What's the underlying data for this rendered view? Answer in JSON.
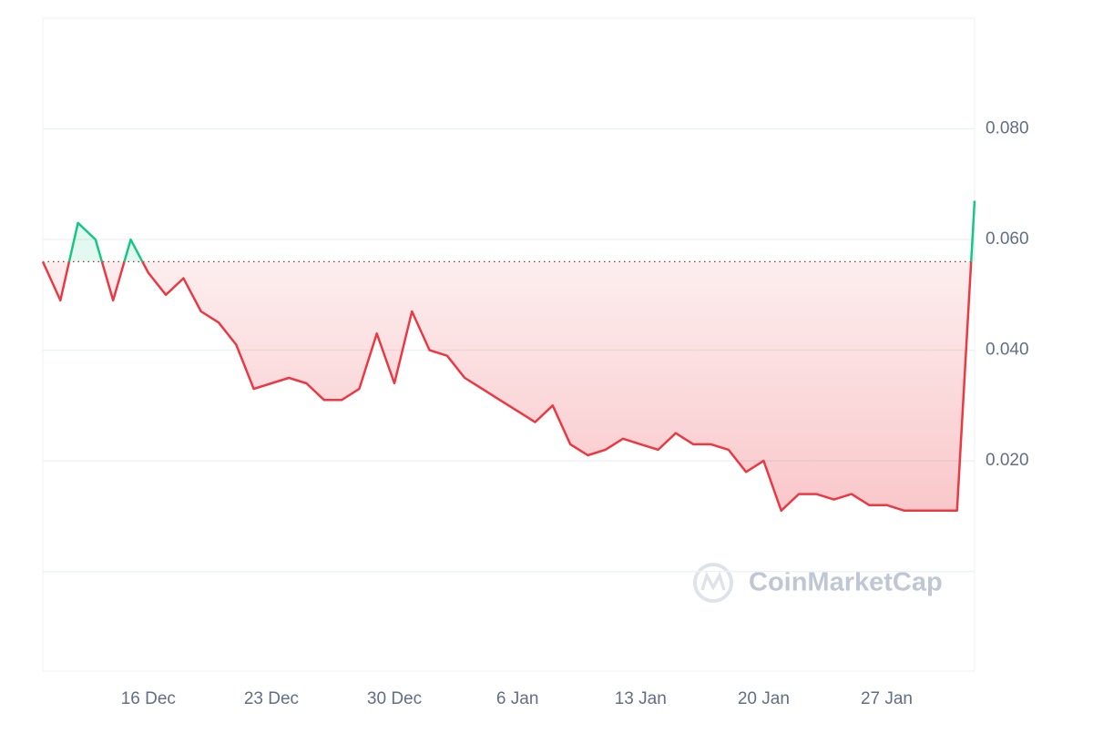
{
  "chart_data": {
    "type": "line",
    "x": [
      "10 Dec",
      "11 Dec",
      "12 Dec",
      "13 Dec",
      "14 Dec",
      "15 Dec",
      "16 Dec",
      "17 Dec",
      "18 Dec",
      "19 Dec",
      "20 Dec",
      "21 Dec",
      "22 Dec",
      "23 Dec",
      "24 Dec",
      "25 Dec",
      "26 Dec",
      "27 Dec",
      "28 Dec",
      "29 Dec",
      "30 Dec",
      "31 Dec",
      "1 Jan",
      "2 Jan",
      "3 Jan",
      "4 Jan",
      "5 Jan",
      "6 Jan",
      "7 Jan",
      "8 Jan",
      "9 Jan",
      "10 Jan",
      "11 Jan",
      "12 Jan",
      "13 Jan",
      "14 Jan",
      "15 Jan",
      "16 Jan",
      "17 Jan",
      "18 Jan",
      "19 Jan",
      "20 Jan",
      "21 Jan",
      "22 Jan",
      "23 Jan",
      "24 Jan",
      "25 Jan",
      "26 Jan",
      "27 Jan",
      "28 Jan",
      "29 Jan",
      "30 Jan",
      "31 Jan",
      "1 Feb"
    ],
    "series": [
      {
        "values": [
          0.056,
          0.049,
          0.063,
          0.06,
          0.049,
          0.06,
          0.054,
          0.05,
          0.053,
          0.047,
          0.045,
          0.041,
          0.033,
          0.034,
          0.035,
          0.034,
          0.031,
          0.031,
          0.033,
          0.043,
          0.034,
          0.047,
          0.04,
          0.039,
          0.035,
          0.033,
          0.031,
          0.029,
          0.027,
          0.03,
          0.023,
          0.021,
          0.022,
          0.024,
          0.023,
          0.022,
          0.025,
          0.023,
          0.023,
          0.022,
          0.018,
          0.02,
          0.011,
          0.014,
          0.014,
          0.013,
          0.014,
          0.012,
          0.012,
          0.011,
          0.011,
          0.011,
          0.011,
          0.067
        ]
      }
    ],
    "baseline": 0.056,
    "up_color": "#16c784",
    "down_color": "#ea3943",
    "xticks": [
      "16 Dec",
      "23 Dec",
      "30 Dec",
      "6 Jan",
      "13 Jan",
      "20 Jan",
      "27 Jan"
    ],
    "ylim": [
      -0.018,
      0.1
    ],
    "yticks": [
      {
        "value": 0,
        "label": null
      },
      {
        "value": 0.02,
        "label": "0.020"
      },
      {
        "value": 0.04,
        "label": "0.040"
      },
      {
        "value": 0.06,
        "label": "0.060"
      },
      {
        "value": 0.08,
        "label": "0.080"
      }
    ],
    "grid": true,
    "watermark": "CoinMarketCap"
  }
}
